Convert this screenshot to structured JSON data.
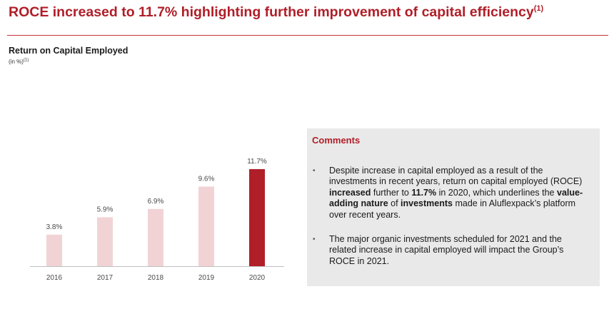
{
  "header": {
    "title": "ROCE increased to 11.7% highlighting further improvement of capital efficiency",
    "title_footnote": "(1)"
  },
  "chart_meta": {
    "title": "Return on Capital Employed",
    "subtitle": "(in %)",
    "subtitle_footnote": "(1)"
  },
  "chart_data": {
    "type": "bar",
    "title": "Return on Capital Employed",
    "ylabel": "in %",
    "categories": [
      "2016",
      "2017",
      "2018",
      "2019",
      "2020"
    ],
    "values": [
      3.8,
      5.9,
      6.9,
      9.6,
      11.7
    ],
    "value_labels": [
      "3.8%",
      "5.9%",
      "6.9%",
      "9.6%",
      "11.7%"
    ],
    "ylim": [
      0,
      11.7
    ],
    "grid": false,
    "colors": {
      "default": "#f2d3d5",
      "highlight": "#b01e28",
      "highlight_index": 4
    }
  },
  "comments": {
    "heading": "Comments",
    "items": [
      {
        "segments": [
          {
            "text": "Despite increase in capital employed as a result of the investments in recent years, return on capital employed (ROCE) ",
            "bold": false
          },
          {
            "text": "increased",
            "bold": true
          },
          {
            "text": " further to ",
            "bold": false
          },
          {
            "text": "11.7%",
            "bold": true
          },
          {
            "text": " in 2020, which underlines the ",
            "bold": false
          },
          {
            "text": "value-adding nature",
            "bold": true
          },
          {
            "text": " of ",
            "bold": false
          },
          {
            "text": "investments",
            "bold": true
          },
          {
            "text": " made in Aluflexpack’s platform over recent years.",
            "bold": false
          }
        ]
      },
      {
        "segments": [
          {
            "text": "The major organic investments scheduled for 2021 and the related increase in capital employed will impact the Group’s ROCE in 2021.",
            "bold": false
          }
        ]
      }
    ]
  },
  "colors": {
    "accent": "#b01e28",
    "panel": "#e9e9e9"
  }
}
